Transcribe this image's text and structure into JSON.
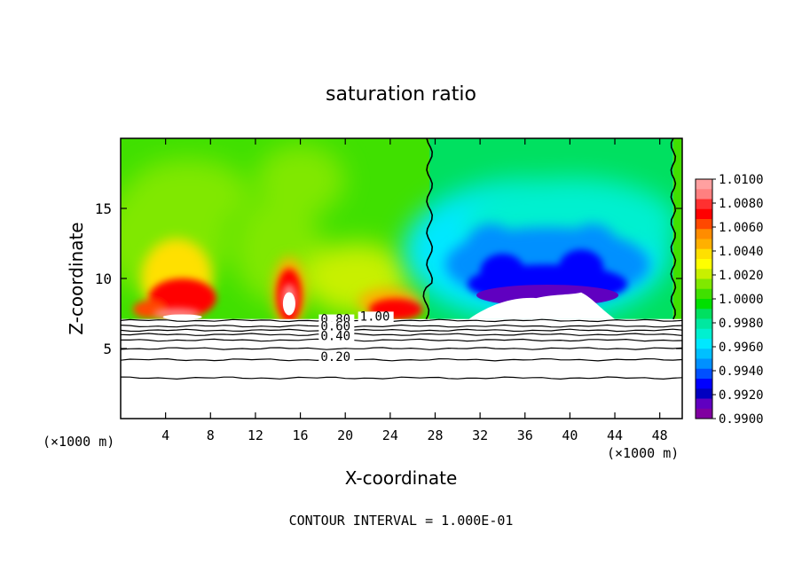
{
  "chart_data": {
    "type": "heatmap",
    "title": "saturation ratio",
    "xlabel": "X-coordinate",
    "ylabel": "Z-coordinate",
    "x_unit_left": "(×1000 m)",
    "x_unit_right": "(×1000 m)",
    "xlim": [
      0,
      50
    ],
    "ylim": [
      0,
      20
    ],
    "x_ticks": [
      4,
      8,
      12,
      16,
      20,
      24,
      28,
      32,
      36,
      40,
      44,
      48
    ],
    "y_ticks": [
      5,
      10,
      15
    ],
    "colorbar": {
      "min": 0.99,
      "max": 1.01,
      "labels": [
        "1.0100",
        "1.0080",
        "1.0060",
        "1.0040",
        "1.0020",
        "1.0000",
        "0.9980",
        "0.9960",
        "0.9940",
        "0.9920",
        "0.9900"
      ],
      "colors": [
        "#ffa0a0",
        "#ff8080",
        "#ff3030",
        "#ff0000",
        "#ff4800",
        "#ff8c00",
        "#ffb000",
        "#ffe000",
        "#ffff00",
        "#c8f000",
        "#80e800",
        "#40e000",
        "#00e000",
        "#00e060",
        "#00e8a0",
        "#00f0d0",
        "#00e8ff",
        "#00c0ff",
        "#0090ff",
        "#0050ff",
        "#0000ff",
        "#0000c0",
        "#6000c0",
        "#8000a0"
      ]
    },
    "contour_labels": [
      {
        "text": "1.00",
        "x": 21.3,
        "z": 7.0
      },
      {
        "text": "0.80",
        "x": 17.8,
        "z": 6.8
      },
      {
        "text": "0.60",
        "x": 17.8,
        "z": 6.3
      },
      {
        "text": "0.40",
        "x": 17.8,
        "z": 5.6
      },
      {
        "text": "0.20",
        "x": 17.8,
        "z": 4.1
      }
    ],
    "contour_levels_below_cloud": [
      7.0,
      6.6,
      6.3,
      6.0,
      5.6,
      5.0,
      4.2,
      2.9
    ],
    "cloud_base_z": 7.1,
    "regions": [
      {
        "name": "supersaturated-left",
        "x": [
          0,
          27.5
        ],
        "value_range": [
          1.0,
          1.01
        ]
      },
      {
        "name": "subsaturated-right",
        "x": [
          27.5,
          49.2
        ],
        "value_range": [
          0.99,
          1.0
        ]
      },
      {
        "name": "edge-strip",
        "x": [
          49.2,
          50
        ],
        "value_range": [
          1.0,
          1.0
        ]
      }
    ]
  },
  "footer": {
    "contour_interval": "CONTOUR INTERVAL = 1.000E-01"
  }
}
